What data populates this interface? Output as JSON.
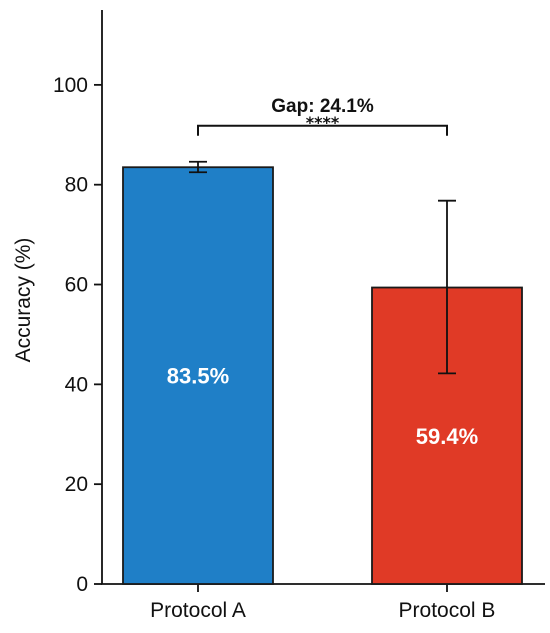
{
  "chart_data": {
    "type": "bar",
    "categories": [
      "Protocol A",
      "Protocol B"
    ],
    "values": [
      83.5,
      59.4
    ],
    "errors": [
      {
        "low": 82.5,
        "high": 84.6
      },
      {
        "low": 42.2,
        "high": 76.8
      }
    ],
    "bar_labels": [
      "83.5%",
      "59.4%"
    ],
    "colors": [
      "#1f7fc7",
      "#e03a26"
    ],
    "edge_color": "#1a1a1a",
    "xlabel": "",
    "ylabel": "Accuracy (%)",
    "ylim": [
      0,
      115
    ],
    "yticks": [
      0,
      20,
      40,
      60,
      80,
      100
    ],
    "grid": false,
    "annotation": {
      "text": "Gap: 24.1%",
      "significance": "****",
      "y": 91.8
    }
  }
}
